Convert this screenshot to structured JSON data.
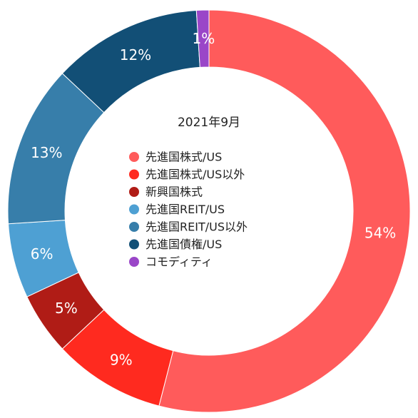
{
  "chart_data": {
    "type": "pie",
    "title": "2021年9月",
    "legend_placement": "center",
    "slices": [
      {
        "name": "先進国株式/US",
        "value": 54,
        "label": "54%",
        "color": "#FF5B5B"
      },
      {
        "name": "先進国株式/US以外",
        "value": 9,
        "label": "9%",
        "color": "#FF2A1F"
      },
      {
        "name": "新興国株式",
        "value": 5,
        "label": "5%",
        "color": "#B01C16"
      },
      {
        "name": "先進国REIT/US",
        "value": 6,
        "label": "6%",
        "color": "#4EA0D3"
      },
      {
        "name": "先進国REIT/US以外",
        "value": 13,
        "label": "13%",
        "color": "#377EAA"
      },
      {
        "name": "先進国債権/US",
        "value": 12,
        "label": "12%",
        "color": "#124F76"
      },
      {
        "name": "コモディティ",
        "value": 1,
        "label": "1%",
        "color": "#9A46C8"
      }
    ]
  }
}
